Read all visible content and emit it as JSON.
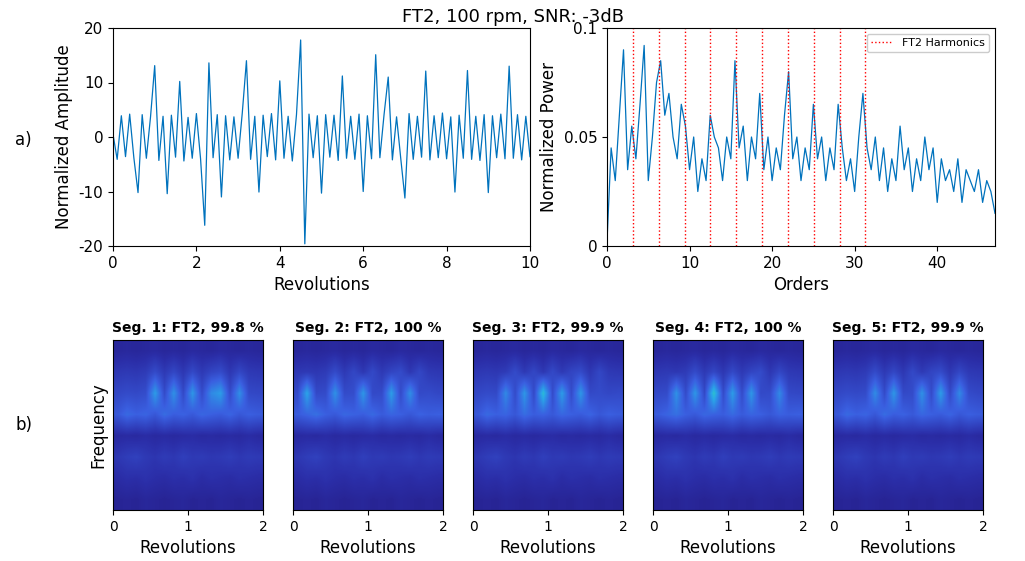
{
  "title": "FT2, 100 rpm, SNR: -3dB",
  "panel_labels": [
    "a)",
    "b)"
  ],
  "chart_data": [
    {
      "type": "line",
      "xlabel": "Revolutions",
      "ylabel": "Normalized Amplitude",
      "color": "#0072bd",
      "xlim": [
        0,
        10
      ],
      "xticks": [
        0,
        2,
        4,
        6,
        8,
        10
      ],
      "ylim": [
        -20,
        20
      ],
      "yticks": [
        -20,
        -10,
        0,
        10,
        20
      ],
      "x": [
        0,
        0.1,
        0.2,
        0.3,
        0.4,
        0.5,
        0.6,
        0.7,
        0.8,
        0.9,
        1.0,
        1.1,
        1.2,
        1.3,
        1.4,
        1.5,
        1.6,
        1.7,
        1.8,
        1.9,
        2.0,
        2.1,
        2.2,
        2.3,
        2.4,
        2.5,
        2.6,
        2.7,
        2.8,
        2.9,
        3.0,
        3.1,
        3.2,
        3.3,
        3.4,
        3.5,
        3.6,
        3.7,
        3.8,
        3.9,
        4.0,
        4.1,
        4.2,
        4.3,
        4.4,
        4.5,
        4.6,
        4.7,
        4.8,
        4.9,
        5.0,
        5.1,
        5.2,
        5.3,
        5.4,
        5.5,
        5.6,
        5.7,
        5.8,
        5.9,
        6.0,
        6.1,
        6.2,
        6.3,
        6.4,
        6.5,
        6.6,
        6.7,
        6.8,
        6.9,
        7.0,
        7.1,
        7.2,
        7.3,
        7.4,
        7.5,
        7.6,
        7.7,
        7.8,
        7.9,
        8.0,
        8.1,
        8.2,
        8.3,
        8.4,
        8.5,
        8.6,
        8.7,
        8.8,
        8.9,
        9.0,
        9.1,
        9.2,
        9.3,
        9.4,
        9.5,
        9.6,
        9.7,
        9.8,
        9.9,
        10.0
      ],
      "values": [
        0.5,
        -4.1,
        3.9,
        -3.6,
        4.2,
        -3.8,
        -10.2,
        4.1,
        -3.9,
        3.7,
        13.1,
        -4.3,
        3.8,
        -10.4,
        4.0,
        -3.7,
        10.2,
        -4.4,
        3.6,
        -3.9,
        4.3,
        -4.0,
        -16.2,
        13.6,
        -3.8,
        4.1,
        -11.0,
        3.9,
        -4.2,
        3.7,
        -3.9,
        4.4,
        14.0,
        -4.1,
        3.8,
        -10.1,
        4.0,
        -3.6,
        4.3,
        -4.2,
        10.3,
        -3.9,
        3.8,
        -4.4,
        4.1,
        17.8,
        -19.6,
        4.2,
        -3.8,
        3.9,
        -10.3,
        4.1,
        -3.7,
        4.0,
        -4.3,
        11.2,
        -3.9,
        3.8,
        -4.1,
        4.2,
        -10.0,
        3.9,
        -4.0,
        15.1,
        -3.8,
        4.1,
        11.0,
        -4.2,
        3.7,
        -3.9,
        -11.2,
        4.3,
        -4.1,
        3.8,
        -3.7,
        12.1,
        -4.2,
        3.9,
        -3.8,
        4.4,
        -4.0,
        3.7,
        -10.1,
        4.0,
        -3.9,
        12.2,
        -4.1,
        3.8,
        -4.3,
        4.1,
        -10.2,
        3.9,
        -3.8,
        4.2,
        -4.0,
        13.0,
        -3.9,
        4.1,
        -4.2,
        3.8,
        -3.6
      ]
    },
    {
      "type": "line",
      "xlabel": "Orders",
      "ylabel": "Normalized Power",
      "color": "#0072bd",
      "xlim": [
        0,
        47
      ],
      "xticks": [
        0,
        10,
        20,
        30,
        40
      ],
      "ylim": [
        0,
        0.1
      ],
      "yticks": [
        0,
        0.05,
        0.1
      ],
      "legend": "upper right",
      "x": [
        0,
        0.5,
        1,
        1.5,
        2,
        2.5,
        3,
        3.5,
        4,
        4.5,
        5,
        5.5,
        6,
        6.5,
        7,
        7.5,
        8,
        8.5,
        9,
        9.5,
        10,
        10.5,
        11,
        11.5,
        12,
        12.5,
        13,
        13.5,
        14,
        14.5,
        15,
        15.5,
        16,
        16.5,
        17,
        17.5,
        18,
        18.5,
        19,
        19.5,
        20,
        20.5,
        21,
        21.5,
        22,
        22.5,
        23,
        23.5,
        24,
        24.5,
        25,
        25.5,
        26,
        26.5,
        27,
        27.5,
        28,
        28.5,
        29,
        29.5,
        30,
        30.5,
        31,
        31.5,
        32,
        32.5,
        33,
        33.5,
        34,
        34.5,
        35,
        35.5,
        36,
        36.5,
        37,
        37.5,
        38,
        38.5,
        39,
        39.5,
        40,
        40.5,
        41,
        41.5,
        42,
        42.5,
        43,
        43.5,
        44,
        44.5,
        45,
        45.5,
        46,
        46.5,
        47
      ],
      "values": [
        0.002,
        0.045,
        0.03,
        0.06,
        0.09,
        0.035,
        0.055,
        0.04,
        0.065,
        0.092,
        0.03,
        0.05,
        0.075,
        0.085,
        0.06,
        0.07,
        0.05,
        0.04,
        0.065,
        0.055,
        0.035,
        0.05,
        0.025,
        0.04,
        0.03,
        0.06,
        0.05,
        0.045,
        0.03,
        0.05,
        0.04,
        0.085,
        0.045,
        0.055,
        0.03,
        0.05,
        0.04,
        0.07,
        0.035,
        0.05,
        0.03,
        0.045,
        0.035,
        0.06,
        0.08,
        0.04,
        0.05,
        0.03,
        0.045,
        0.035,
        0.065,
        0.04,
        0.05,
        0.03,
        0.045,
        0.035,
        0.065,
        0.045,
        0.03,
        0.04,
        0.025,
        0.05,
        0.07,
        0.045,
        0.035,
        0.05,
        0.03,
        0.045,
        0.025,
        0.04,
        0.03,
        0.055,
        0.035,
        0.045,
        0.025,
        0.04,
        0.03,
        0.05,
        0.035,
        0.045,
        0.02,
        0.04,
        0.03,
        0.035,
        0.025,
        0.04,
        0.02,
        0.035,
        0.03,
        0.025,
        0.035,
        0.02,
        0.03,
        0.025,
        0.015
      ],
      "harmonics": {
        "name": "FT2 Harmonics",
        "color": "#ff0000",
        "line_style": "dotted",
        "x": [
          3.13,
          6.26,
          9.39,
          12.52,
          15.65,
          18.78,
          21.91,
          25.04,
          28.17,
          31.3
        ]
      }
    },
    {
      "type": "heatmap",
      "title": "Seg. 1: FT2, 99.8 %",
      "xlabel": "Revolutions",
      "ylabel": "Frequency",
      "xlim": [
        0,
        2
      ],
      "xticks": [
        0,
        1,
        2
      ],
      "tick_labels": "x",
      "clim": [
        0,
        1
      ],
      "cells": [
        [
          0.08,
          0.09,
          0.08,
          0.1,
          0.09,
          0.08,
          0.09,
          0.1,
          0.08,
          0.09,
          0.08,
          0.1,
          0.09,
          0.08,
          0.09,
          0.08
        ],
        [
          0.14,
          0.16,
          0.15,
          0.17,
          0.15,
          0.14,
          0.16,
          0.15,
          0.17,
          0.14,
          0.16,
          0.15,
          0.14,
          0.16,
          0.15,
          0.14
        ],
        [
          0.2,
          0.23,
          0.25,
          0.21,
          0.19,
          0.22,
          0.2,
          0.24,
          0.21,
          0.22,
          0.2,
          0.21,
          0.23,
          0.2,
          0.22,
          0.21
        ],
        [
          0.12,
          0.13,
          0.12,
          0.14,
          0.12,
          0.13,
          0.12,
          0.13,
          0.14,
          0.12,
          0.13,
          0.12,
          0.13,
          0.12,
          0.14,
          0.12
        ],
        [
          0.36,
          0.44,
          0.4,
          0.42,
          0.36,
          0.45,
          0.39,
          0.41,
          0.37,
          0.43,
          0.4,
          0.38,
          0.42,
          0.36,
          0.4,
          0.38
        ],
        [
          0.28,
          0.3,
          0.29,
          0.31,
          0.62,
          0.3,
          0.58,
          0.29,
          0.6,
          0.3,
          0.55,
          0.62,
          0.3,
          0.57,
          0.29,
          0.28
        ],
        [
          0.2,
          0.21,
          0.2,
          0.22,
          0.3,
          0.21,
          0.28,
          0.2,
          0.29,
          0.21,
          0.27,
          0.3,
          0.2,
          0.28,
          0.21,
          0.2
        ],
        [
          0.1,
          0.11,
          0.1,
          0.11,
          0.12,
          0.1,
          0.11,
          0.1,
          0.12,
          0.11,
          0.1,
          0.12,
          0.11,
          0.1,
          0.11,
          0.1
        ]
      ]
    },
    {
      "type": "heatmap",
      "title": "Seg. 2: FT2, 100 %",
      "xlabel": "Revolutions",
      "xlim": [
        0,
        2
      ],
      "xticks": [
        0,
        1,
        2
      ],
      "tick_labels": "x",
      "clim": [
        0,
        1
      ],
      "cells": [
        [
          0.08,
          0.09,
          0.08,
          0.1,
          0.09,
          0.08,
          0.09,
          0.1,
          0.08,
          0.09,
          0.08,
          0.1,
          0.09,
          0.08,
          0.09,
          0.08
        ],
        [
          0.14,
          0.16,
          0.15,
          0.17,
          0.15,
          0.14,
          0.16,
          0.15,
          0.17,
          0.14,
          0.16,
          0.15,
          0.14,
          0.16,
          0.15,
          0.14
        ],
        [
          0.2,
          0.23,
          0.25,
          0.21,
          0.19,
          0.22,
          0.2,
          0.24,
          0.21,
          0.22,
          0.2,
          0.21,
          0.23,
          0.2,
          0.22,
          0.21
        ],
        [
          0.12,
          0.13,
          0.12,
          0.14,
          0.12,
          0.13,
          0.12,
          0.13,
          0.14,
          0.12,
          0.13,
          0.12,
          0.13,
          0.12,
          0.14,
          0.12
        ],
        [
          0.38,
          0.42,
          0.46,
          0.4,
          0.37,
          0.43,
          0.41,
          0.39,
          0.44,
          0.38,
          0.42,
          0.4,
          0.36,
          0.41,
          0.39,
          0.4
        ],
        [
          0.3,
          0.65,
          0.29,
          0.3,
          0.58,
          0.3,
          0.31,
          0.6,
          0.29,
          0.3,
          0.62,
          0.3,
          0.57,
          0.29,
          0.3,
          0.28
        ],
        [
          0.2,
          0.21,
          0.2,
          0.22,
          0.3,
          0.21,
          0.28,
          0.2,
          0.29,
          0.21,
          0.27,
          0.3,
          0.2,
          0.28,
          0.21,
          0.2
        ],
        [
          0.1,
          0.11,
          0.1,
          0.11,
          0.12,
          0.1,
          0.11,
          0.1,
          0.12,
          0.11,
          0.1,
          0.12,
          0.11,
          0.1,
          0.11,
          0.1
        ]
      ]
    },
    {
      "type": "heatmap",
      "title": "Seg. 3: FT2, 99.9 %",
      "xlabel": "Revolutions",
      "xlim": [
        0,
        2
      ],
      "xticks": [
        0,
        1,
        2
      ],
      "tick_labels": "x",
      "clim": [
        0,
        1
      ],
      "cells": [
        [
          0.08,
          0.09,
          0.08,
          0.1,
          0.09,
          0.08,
          0.09,
          0.1,
          0.08,
          0.09,
          0.08,
          0.1,
          0.09,
          0.08,
          0.09,
          0.08
        ],
        [
          0.14,
          0.16,
          0.15,
          0.17,
          0.15,
          0.14,
          0.16,
          0.15,
          0.17,
          0.14,
          0.16,
          0.15,
          0.14,
          0.16,
          0.15,
          0.14
        ],
        [
          0.2,
          0.23,
          0.25,
          0.21,
          0.19,
          0.22,
          0.2,
          0.24,
          0.21,
          0.22,
          0.2,
          0.21,
          0.23,
          0.2,
          0.22,
          0.21
        ],
        [
          0.12,
          0.13,
          0.12,
          0.14,
          0.12,
          0.13,
          0.12,
          0.13,
          0.14,
          0.12,
          0.13,
          0.12,
          0.13,
          0.12,
          0.14,
          0.12
        ],
        [
          0.36,
          0.44,
          0.4,
          0.42,
          0.36,
          0.45,
          0.39,
          0.41,
          0.37,
          0.43,
          0.4,
          0.38,
          0.42,
          0.36,
          0.4,
          0.38
        ],
        [
          0.28,
          0.3,
          0.29,
          0.55,
          0.3,
          0.6,
          0.29,
          0.75,
          0.3,
          0.62,
          0.3,
          0.6,
          0.29,
          0.3,
          0.28,
          0.29
        ],
        [
          0.2,
          0.21,
          0.2,
          0.22,
          0.3,
          0.21,
          0.28,
          0.2,
          0.29,
          0.21,
          0.27,
          0.3,
          0.2,
          0.28,
          0.21,
          0.2
        ],
        [
          0.1,
          0.11,
          0.1,
          0.11,
          0.12,
          0.1,
          0.11,
          0.1,
          0.12,
          0.11,
          0.1,
          0.12,
          0.11,
          0.1,
          0.11,
          0.1
        ]
      ]
    },
    {
      "type": "heatmap",
      "title": "Seg. 4: FT2, 100 %",
      "xlabel": "Revolutions",
      "xlim": [
        0,
        2
      ],
      "xticks": [
        0,
        1,
        2
      ],
      "tick_labels": "x",
      "clim": [
        0,
        1
      ],
      "cells": [
        [
          0.08,
          0.09,
          0.08,
          0.1,
          0.09,
          0.08,
          0.09,
          0.1,
          0.08,
          0.09,
          0.08,
          0.1,
          0.09,
          0.08,
          0.09,
          0.08
        ],
        [
          0.14,
          0.16,
          0.15,
          0.17,
          0.15,
          0.14,
          0.16,
          0.15,
          0.17,
          0.14,
          0.16,
          0.15,
          0.14,
          0.16,
          0.15,
          0.14
        ],
        [
          0.2,
          0.23,
          0.25,
          0.21,
          0.19,
          0.22,
          0.2,
          0.24,
          0.21,
          0.22,
          0.2,
          0.21,
          0.23,
          0.2,
          0.22,
          0.21
        ],
        [
          0.12,
          0.13,
          0.12,
          0.14,
          0.12,
          0.13,
          0.12,
          0.13,
          0.14,
          0.12,
          0.13,
          0.12,
          0.13,
          0.12,
          0.14,
          0.12
        ],
        [
          0.38,
          0.42,
          0.46,
          0.4,
          0.37,
          0.43,
          0.41,
          0.39,
          0.44,
          0.38,
          0.42,
          0.4,
          0.36,
          0.41,
          0.39,
          0.4
        ],
        [
          0.29,
          0.3,
          0.58,
          0.3,
          0.6,
          0.29,
          0.78,
          0.3,
          0.62,
          0.3,
          0.6,
          0.29,
          0.3,
          0.55,
          0.29,
          0.28
        ],
        [
          0.2,
          0.21,
          0.2,
          0.22,
          0.3,
          0.21,
          0.28,
          0.2,
          0.29,
          0.21,
          0.27,
          0.3,
          0.2,
          0.28,
          0.21,
          0.2
        ],
        [
          0.1,
          0.11,
          0.1,
          0.11,
          0.12,
          0.1,
          0.11,
          0.1,
          0.12,
          0.11,
          0.1,
          0.12,
          0.11,
          0.1,
          0.11,
          0.1
        ]
      ]
    },
    {
      "type": "heatmap",
      "title": "Seg. 5: FT2, 99.9 %",
      "xlabel": "Revolutions",
      "xlim": [
        0,
        2
      ],
      "xticks": [
        0,
        1,
        2
      ],
      "tick_labels": "x",
      "clim": [
        0,
        1
      ],
      "cells": [
        [
          0.08,
          0.09,
          0.08,
          0.1,
          0.09,
          0.08,
          0.09,
          0.1,
          0.08,
          0.09,
          0.08,
          0.1,
          0.09,
          0.08,
          0.09,
          0.08
        ],
        [
          0.14,
          0.16,
          0.15,
          0.17,
          0.15,
          0.14,
          0.16,
          0.15,
          0.17,
          0.14,
          0.16,
          0.15,
          0.14,
          0.16,
          0.15,
          0.14
        ],
        [
          0.2,
          0.23,
          0.25,
          0.21,
          0.19,
          0.22,
          0.2,
          0.24,
          0.21,
          0.22,
          0.2,
          0.21,
          0.23,
          0.2,
          0.22,
          0.21
        ],
        [
          0.12,
          0.13,
          0.12,
          0.14,
          0.12,
          0.13,
          0.12,
          0.13,
          0.14,
          0.12,
          0.13,
          0.12,
          0.13,
          0.12,
          0.14,
          0.12
        ],
        [
          0.36,
          0.44,
          0.4,
          0.42,
          0.36,
          0.45,
          0.39,
          0.41,
          0.37,
          0.43,
          0.4,
          0.38,
          0.42,
          0.36,
          0.4,
          0.38
        ],
        [
          0.28,
          0.3,
          0.29,
          0.3,
          0.56,
          0.3,
          0.6,
          0.29,
          0.3,
          0.58,
          0.3,
          0.62,
          0.29,
          0.55,
          0.3,
          0.28
        ],
        [
          0.2,
          0.21,
          0.2,
          0.22,
          0.3,
          0.21,
          0.28,
          0.2,
          0.29,
          0.21,
          0.27,
          0.3,
          0.2,
          0.28,
          0.21,
          0.2
        ],
        [
          0.1,
          0.11,
          0.1,
          0.11,
          0.12,
          0.1,
          0.11,
          0.1,
          0.12,
          0.11,
          0.1,
          0.12,
          0.11,
          0.1,
          0.11,
          0.1
        ]
      ]
    }
  ]
}
